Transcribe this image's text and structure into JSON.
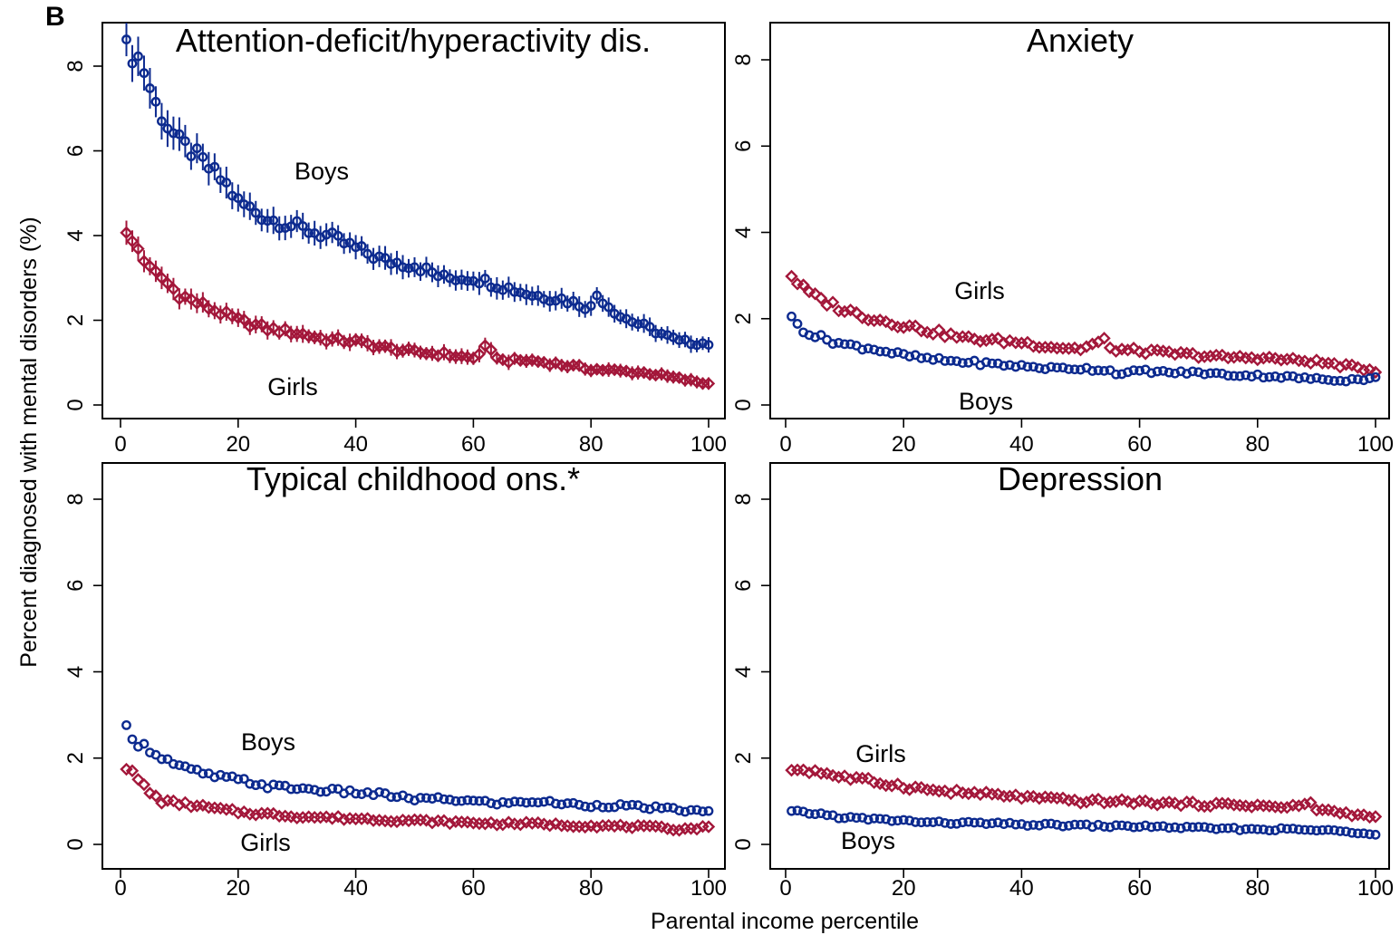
{
  "figure": {
    "panel_letter": "B",
    "ylabel": "Percent diagnosed with mental disorders (%)",
    "xlabel": "Parental income percentile",
    "colors": {
      "boys": "#0c2a8f",
      "girls": "#a3173a"
    }
  },
  "chart_data": [
    {
      "type": "scatter",
      "title": "Attention-deficit/hyperactivity dis.",
      "xlim": [
        0,
        100
      ],
      "ylim": [
        0,
        8.5
      ],
      "xticks": [
        0,
        20,
        40,
        60,
        80,
        100
      ],
      "xtick_labels": [
        "0",
        "20",
        "40",
        "60",
        "80",
        "100"
      ],
      "yticks": [
        0,
        2,
        4,
        6,
        8
      ],
      "ytick_labels": [
        "0",
        "2",
        "4",
        "6",
        "8"
      ],
      "error_bars": true,
      "series": [
        {
          "name": "Boys",
          "marker": "circle",
          "color": "#0c2a8f",
          "anchors": [
            [
              1,
              8.4
            ],
            [
              3,
              8.2
            ],
            [
              4,
              7.9
            ],
            [
              6,
              7.1
            ],
            [
              8,
              6.6
            ],
            [
              10,
              6.2
            ],
            [
              12,
              6.0
            ],
            [
              15,
              5.6
            ],
            [
              18,
              5.2
            ],
            [
              20,
              4.8
            ],
            [
              25,
              4.4
            ],
            [
              30,
              4.2
            ],
            [
              35,
              4.0
            ],
            [
              40,
              3.7
            ],
            [
              45,
              3.4
            ],
            [
              50,
              3.3
            ],
            [
              55,
              3.0
            ],
            [
              60,
              3.0
            ],
            [
              65,
              2.8
            ],
            [
              70,
              2.6
            ],
            [
              75,
              2.5
            ],
            [
              80,
              2.3
            ],
            [
              81,
              2.6
            ],
            [
              85,
              2.1
            ],
            [
              90,
              1.8
            ],
            [
              95,
              1.5
            ],
            [
              100,
              1.45
            ]
          ],
          "label": "Boys"
        },
        {
          "name": "Girls",
          "marker": "diamond",
          "color": "#a3173a",
          "anchors": [
            [
              1,
              4.0
            ],
            [
              3,
              3.7
            ],
            [
              5,
              3.2
            ],
            [
              7,
              3.0
            ],
            [
              10,
              2.6
            ],
            [
              15,
              2.3
            ],
            [
              20,
              2.0
            ],
            [
              25,
              1.8
            ],
            [
              30,
              1.7
            ],
            [
              35,
              1.55
            ],
            [
              40,
              1.5
            ],
            [
              45,
              1.35
            ],
            [
              50,
              1.25
            ],
            [
              55,
              1.2
            ],
            [
              60,
              1.1
            ],
            [
              62,
              1.35
            ],
            [
              65,
              1.05
            ],
            [
              70,
              1.05
            ],
            [
              75,
              0.95
            ],
            [
              80,
              0.85
            ],
            [
              85,
              0.8
            ],
            [
              90,
              0.75
            ],
            [
              95,
              0.62
            ],
            [
              100,
              0.5
            ]
          ],
          "label": "Girls"
        }
      ]
    },
    {
      "type": "scatter",
      "title": "Anxiety",
      "xlim": [
        0,
        100
      ],
      "ylim": [
        0,
        8.5
      ],
      "xticks": [
        0,
        20,
        40,
        60,
        80,
        100
      ],
      "xtick_labels": [
        "0",
        "20",
        "40",
        "60",
        "80",
        "100"
      ],
      "yticks": [
        0,
        2,
        4,
        6,
        8
      ],
      "ytick_labels": [
        "0",
        "2",
        "4",
        "6",
        "8"
      ],
      "error_bars": false,
      "series": [
        {
          "name": "Girls",
          "marker": "diamond",
          "color": "#a3173a",
          "anchors": [
            [
              1,
              3.0
            ],
            [
              3,
              2.7
            ],
            [
              5,
              2.5
            ],
            [
              10,
              2.2
            ],
            [
              15,
              2.0
            ],
            [
              20,
              1.85
            ],
            [
              25,
              1.7
            ],
            [
              30,
              1.55
            ],
            [
              35,
              1.5
            ],
            [
              40,
              1.45
            ],
            [
              45,
              1.35
            ],
            [
              50,
              1.3
            ],
            [
              54,
              1.5
            ],
            [
              55,
              1.3
            ],
            [
              60,
              1.25
            ],
            [
              65,
              1.2
            ],
            [
              70,
              1.15
            ],
            [
              75,
              1.1
            ],
            [
              80,
              1.1
            ],
            [
              85,
              1.05
            ],
            [
              90,
              1.0
            ],
            [
              95,
              0.9
            ],
            [
              100,
              0.8
            ]
          ],
          "label": "Girls"
        },
        {
          "name": "Boys",
          "marker": "circle",
          "color": "#0c2a8f",
          "anchors": [
            [
              1,
              2.0
            ],
            [
              3,
              1.75
            ],
            [
              5,
              1.6
            ],
            [
              10,
              1.4
            ],
            [
              15,
              1.3
            ],
            [
              20,
              1.15
            ],
            [
              25,
              1.05
            ],
            [
              30,
              1.0
            ],
            [
              35,
              0.95
            ],
            [
              40,
              0.9
            ],
            [
              45,
              0.85
            ],
            [
              50,
              0.85
            ],
            [
              55,
              0.8
            ],
            [
              57,
              0.7
            ],
            [
              60,
              0.8
            ],
            [
              65,
              0.75
            ],
            [
              70,
              0.75
            ],
            [
              75,
              0.7
            ],
            [
              80,
              0.68
            ],
            [
              85,
              0.65
            ],
            [
              90,
              0.6
            ],
            [
              95,
              0.58
            ],
            [
              100,
              0.62
            ]
          ],
          "label": "Boys"
        }
      ]
    },
    {
      "type": "scatter",
      "title": "Typical childhood ons.*",
      "xlim": [
        0,
        100
      ],
      "ylim": [
        0,
        8.5
      ],
      "xticks": [
        0,
        20,
        40,
        60,
        80,
        100
      ],
      "xtick_labels": [
        "0",
        "20",
        "40",
        "60",
        "80",
        "100"
      ],
      "yticks": [
        0,
        2,
        4,
        6,
        8
      ],
      "ytick_labels": [
        "0",
        "2",
        "4",
        "6",
        "8"
      ],
      "error_bars": false,
      "series": [
        {
          "name": "Boys",
          "marker": "circle",
          "color": "#0c2a8f",
          "anchors": [
            [
              1,
              2.7
            ],
            [
              3,
              2.35
            ],
            [
              5,
              2.2
            ],
            [
              8,
              1.95
            ],
            [
              10,
              1.8
            ],
            [
              15,
              1.6
            ],
            [
              20,
              1.5
            ],
            [
              25,
              1.35
            ],
            [
              30,
              1.3
            ],
            [
              35,
              1.25
            ],
            [
              40,
              1.2
            ],
            [
              45,
              1.15
            ],
            [
              50,
              1.05
            ],
            [
              55,
              1.05
            ],
            [
              60,
              1.0
            ],
            [
              65,
              0.95
            ],
            [
              70,
              1.0
            ],
            [
              75,
              0.95
            ],
            [
              80,
              0.9
            ],
            [
              85,
              0.9
            ],
            [
              90,
              0.85
            ],
            [
              95,
              0.8
            ],
            [
              100,
              0.75
            ]
          ],
          "label": "Boys"
        },
        {
          "name": "Girls",
          "marker": "diamond",
          "color": "#a3173a",
          "anchors": [
            [
              1,
              1.8
            ],
            [
              3,
              1.5
            ],
            [
              5,
              1.2
            ],
            [
              7,
              1.0
            ],
            [
              10,
              0.95
            ],
            [
              15,
              0.85
            ],
            [
              20,
              0.75
            ],
            [
              25,
              0.7
            ],
            [
              30,
              0.65
            ],
            [
              35,
              0.62
            ],
            [
              40,
              0.6
            ],
            [
              45,
              0.57
            ],
            [
              50,
              0.55
            ],
            [
              55,
              0.52
            ],
            [
              60,
              0.5
            ],
            [
              65,
              0.48
            ],
            [
              70,
              0.48
            ],
            [
              75,
              0.45
            ],
            [
              80,
              0.43
            ],
            [
              85,
              0.42
            ],
            [
              90,
              0.4
            ],
            [
              95,
              0.35
            ],
            [
              100,
              0.4
            ]
          ],
          "label": "Girls"
        }
      ]
    },
    {
      "type": "scatter",
      "title": "Depression",
      "xlim": [
        0,
        100
      ],
      "ylim": [
        0,
        8.5
      ],
      "xticks": [
        0,
        20,
        40,
        60,
        80,
        100
      ],
      "xtick_labels": [
        "0",
        "20",
        "40",
        "60",
        "80",
        "100"
      ],
      "yticks": [
        0,
        2,
        4,
        6,
        8
      ],
      "ytick_labels": [
        "0",
        "2",
        "4",
        "6",
        "8"
      ],
      "error_bars": false,
      "series": [
        {
          "name": "Girls",
          "marker": "diamond",
          "color": "#a3173a",
          "anchors": [
            [
              1,
              1.75
            ],
            [
              5,
              1.7
            ],
            [
              10,
              1.55
            ],
            [
              15,
              1.45
            ],
            [
              20,
              1.35
            ],
            [
              25,
              1.25
            ],
            [
              30,
              1.2
            ],
            [
              35,
              1.15
            ],
            [
              40,
              1.1
            ],
            [
              45,
              1.05
            ],
            [
              50,
              1.0
            ],
            [
              55,
              1.0
            ],
            [
              60,
              0.98
            ],
            [
              65,
              0.95
            ],
            [
              70,
              0.93
            ],
            [
              75,
              0.92
            ],
            [
              80,
              0.9
            ],
            [
              85,
              0.85
            ],
            [
              89,
              0.95
            ],
            [
              90,
              0.82
            ],
            [
              95,
              0.72
            ],
            [
              100,
              0.62
            ]
          ],
          "label": "Girls"
        },
        {
          "name": "Boys",
          "marker": "circle",
          "color": "#0c2a8f",
          "anchors": [
            [
              1,
              0.75
            ],
            [
              5,
              0.72
            ],
            [
              10,
              0.62
            ],
            [
              15,
              0.58
            ],
            [
              20,
              0.55
            ],
            [
              25,
              0.5
            ],
            [
              30,
              0.5
            ],
            [
              35,
              0.48
            ],
            [
              40,
              0.46
            ],
            [
              45,
              0.45
            ],
            [
              50,
              0.44
            ],
            [
              55,
              0.42
            ],
            [
              60,
              0.42
            ],
            [
              65,
              0.4
            ],
            [
              70,
              0.38
            ],
            [
              75,
              0.36
            ],
            [
              80,
              0.35
            ],
            [
              85,
              0.35
            ],
            [
              90,
              0.33
            ],
            [
              95,
              0.3
            ],
            [
              100,
              0.25
            ]
          ],
          "label": "Boys"
        }
      ]
    }
  ]
}
